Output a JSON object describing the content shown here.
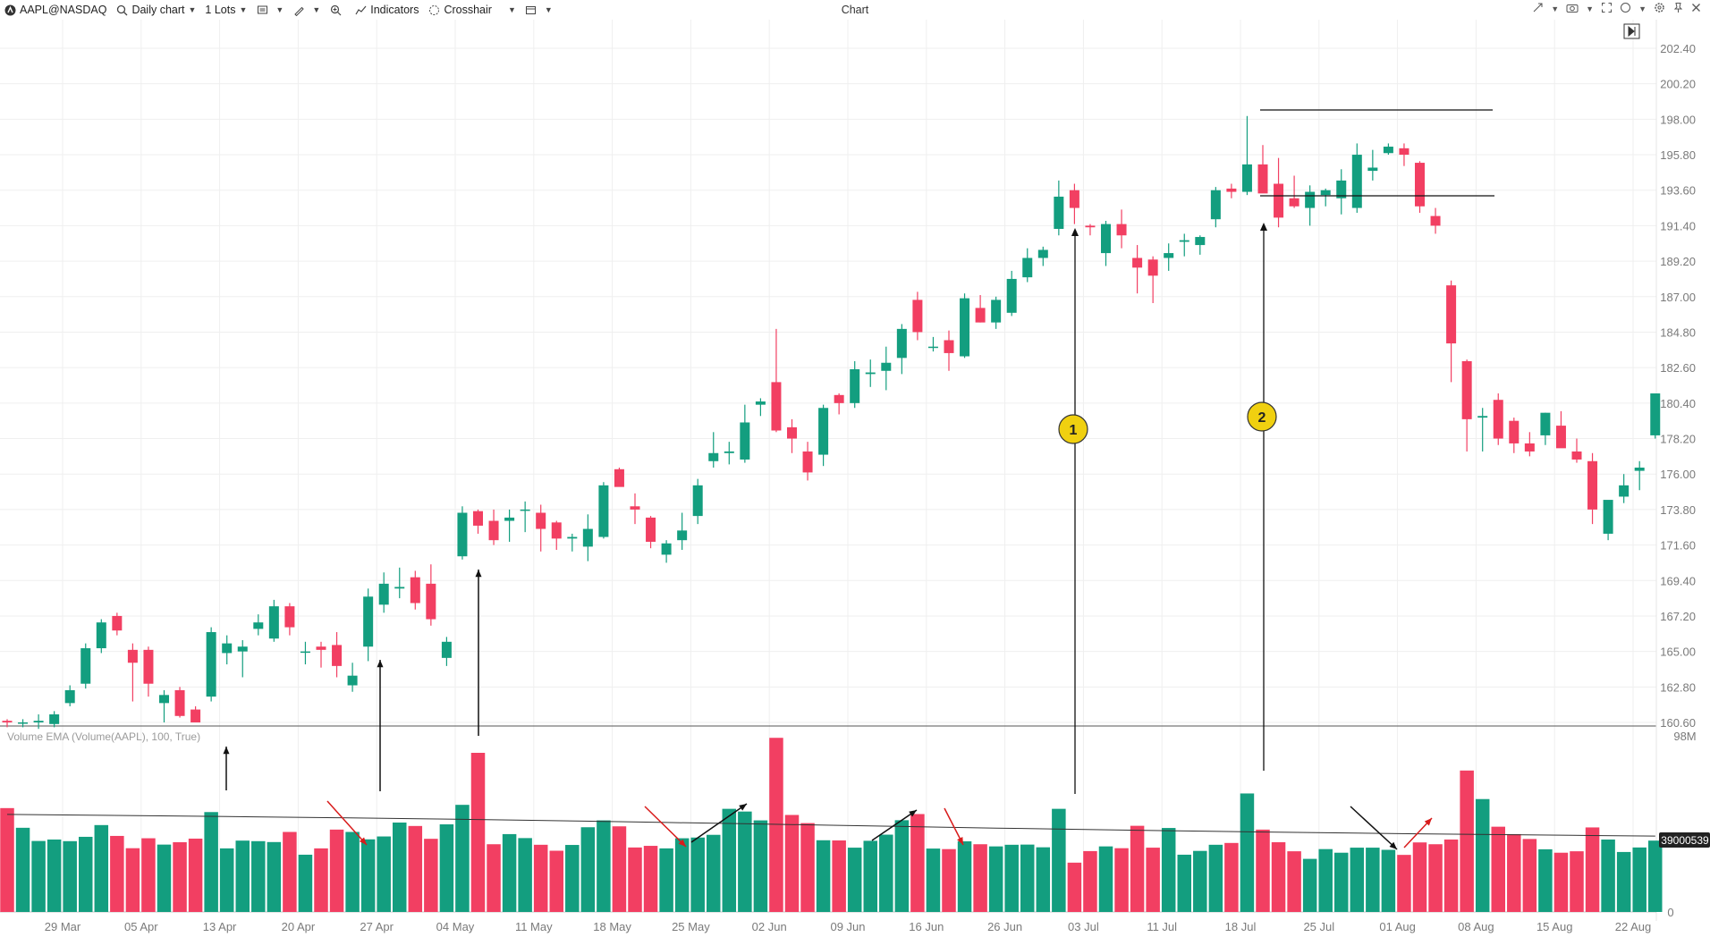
{
  "toolbar": {
    "symbol": "AAPL@NASDAQ",
    "interval": "Daily chart",
    "lots": "1 Lots",
    "indicators": "Indicators",
    "crosshair": "Crosshair",
    "title": "Chart"
  },
  "colors": {
    "up": "#139e7f",
    "down": "#f23f62",
    "ema": "#333333",
    "grid": "#efefef"
  },
  "icons": [
    "logo-icon",
    "search-icon",
    "template-icon",
    "draw-icon",
    "zoom-icon",
    "indicators-icon",
    "crosshair-icon",
    "layout-icon",
    "fit-icon",
    "camera-icon",
    "circle-icon",
    "settings-icon",
    "pin-icon",
    "close-icon",
    "jump-to-end-icon"
  ],
  "chart_data": {
    "type": "candlestick",
    "price_axis": {
      "ticks": [
        "202.40",
        "200.20",
        "198.00",
        "195.80",
        "193.60",
        "191.40",
        "189.20",
        "187.00",
        "184.80",
        "182.60",
        "180.40",
        "178.20",
        "176.00",
        "173.80",
        "171.60",
        "169.40",
        "167.20",
        "165.00",
        "162.80",
        "160.60"
      ],
      "range": [
        160.6,
        202.4
      ]
    },
    "x_labels": [
      "29 Mar",
      "05 Apr",
      "13 Apr",
      "20 Apr",
      "27 Apr",
      "04 May",
      "11 May",
      "18 May",
      "25 May",
      "02 Jun",
      "09 Jun",
      "16 Jun",
      "26 Jun",
      "03 Jul",
      "11 Jul",
      "18 Jul",
      "25 Jul",
      "01 Aug",
      "08 Aug",
      "15 Aug",
      "22 Aug"
    ],
    "candles": [
      [
        160.7,
        160.8,
        160.3,
        160.6
      ],
      [
        160.6,
        160.8,
        160.3,
        160.6
      ],
      [
        160.6,
        161.1,
        160.2,
        160.7
      ],
      [
        160.5,
        161.3,
        160.3,
        161.1
      ],
      [
        161.8,
        162.9,
        161.6,
        162.6
      ],
      [
        163.0,
        165.5,
        162.7,
        165.2
      ],
      [
        165.2,
        167.0,
        164.9,
        166.8
      ],
      [
        167.2,
        167.4,
        166.0,
        166.3
      ],
      [
        165.1,
        165.5,
        161.9,
        164.3
      ],
      [
        165.1,
        165.3,
        162.2,
        163.0
      ],
      [
        161.8,
        162.6,
        160.6,
        162.3
      ],
      [
        162.6,
        162.8,
        160.9,
        161.0
      ],
      [
        161.4,
        161.6,
        160.7,
        160.6
      ],
      [
        162.2,
        166.5,
        161.9,
        166.2
      ],
      [
        164.9,
        166.0,
        164.2,
        165.5
      ],
      [
        165.0,
        165.7,
        163.4,
        165.3
      ],
      [
        166.4,
        167.3,
        166.0,
        166.8
      ],
      [
        165.8,
        168.2,
        165.6,
        167.8
      ],
      [
        167.8,
        168.0,
        166.0,
        166.5
      ],
      [
        165.0,
        165.6,
        164.2,
        165.0
      ],
      [
        165.3,
        165.6,
        164.0,
        165.1
      ],
      [
        165.4,
        166.2,
        163.4,
        164.1
      ],
      [
        162.9,
        164.3,
        162.5,
        163.5
      ],
      [
        165.3,
        168.9,
        164.4,
        168.4
      ],
      [
        167.9,
        169.9,
        167.4,
        169.2
      ],
      [
        168.9,
        170.2,
        168.3,
        169.0
      ],
      [
        169.6,
        170.0,
        167.6,
        168.0
      ],
      [
        169.2,
        170.4,
        166.6,
        167.0
      ],
      [
        164.6,
        165.9,
        164.1,
        165.6
      ],
      [
        170.9,
        174.0,
        170.7,
        173.6
      ],
      [
        173.7,
        173.8,
        172.3,
        172.8
      ],
      [
        173.1,
        173.8,
        171.6,
        171.9
      ],
      [
        173.1,
        173.8,
        171.8,
        173.3
      ],
      [
        173.8,
        174.3,
        172.4,
        173.8
      ],
      [
        173.6,
        174.1,
        171.2,
        172.6
      ],
      [
        173.0,
        173.1,
        171.3,
        172.0
      ],
      [
        172.0,
        172.3,
        171.2,
        172.1
      ],
      [
        171.5,
        173.5,
        170.6,
        172.6
      ],
      [
        172.1,
        175.5,
        172.0,
        175.3
      ],
      [
        176.3,
        176.4,
        175.3,
        175.2
      ],
      [
        174.0,
        174.8,
        172.9,
        173.8
      ],
      [
        173.3,
        173.4,
        171.4,
        171.8
      ],
      [
        171.0,
        171.9,
        170.5,
        171.7
      ],
      [
        171.9,
        173.6,
        171.3,
        172.5
      ],
      [
        173.4,
        175.7,
        172.9,
        175.3
      ],
      [
        176.8,
        178.6,
        176.4,
        177.3
      ],
      [
        177.3,
        178.0,
        176.6,
        177.4
      ],
      [
        176.9,
        180.3,
        176.7,
        179.2
      ],
      [
        180.3,
        180.7,
        179.6,
        180.5
      ],
      [
        181.7,
        185.0,
        178.6,
        178.7
      ],
      [
        178.9,
        179.4,
        177.3,
        178.2
      ],
      [
        177.4,
        178.0,
        175.6,
        176.1
      ],
      [
        177.2,
        180.3,
        176.5,
        180.1
      ],
      [
        180.9,
        181.0,
        179.7,
        180.4
      ],
      [
        180.4,
        183.0,
        180.1,
        182.5
      ],
      [
        182.2,
        183.1,
        181.4,
        182.3
      ],
      [
        182.4,
        183.9,
        181.2,
        182.9
      ],
      [
        183.2,
        185.3,
        182.2,
        185.0
      ],
      [
        186.8,
        187.3,
        184.3,
        184.8
      ],
      [
        183.9,
        184.5,
        183.6,
        183.9
      ],
      [
        184.3,
        184.9,
        182.4,
        183.5
      ],
      [
        183.3,
        187.2,
        183.2,
        186.9
      ],
      [
        186.3,
        187.1,
        185.4,
        185.4
      ],
      [
        185.4,
        187.0,
        185.0,
        186.8
      ],
      [
        186.0,
        188.6,
        185.8,
        188.1
      ],
      [
        188.2,
        190.0,
        187.9,
        189.4
      ],
      [
        189.4,
        190.1,
        188.9,
        189.9
      ],
      [
        191.2,
        194.2,
        190.8,
        193.2
      ],
      [
        193.6,
        194.0,
        191.5,
        192.5
      ],
      [
        191.4,
        191.5,
        190.8,
        191.3
      ],
      [
        189.7,
        191.7,
        188.9,
        191.5
      ],
      [
        191.5,
        192.4,
        190.0,
        190.8
      ],
      [
        189.4,
        190.2,
        187.2,
        188.8
      ],
      [
        189.3,
        189.5,
        186.6,
        188.3
      ],
      [
        189.4,
        190.3,
        188.6,
        189.7
      ],
      [
        190.4,
        190.9,
        189.5,
        190.5
      ],
      [
        190.2,
        190.8,
        189.6,
        190.7
      ],
      [
        191.8,
        193.8,
        191.3,
        193.6
      ],
      [
        193.7,
        194.0,
        193.1,
        193.5
      ],
      [
        193.5,
        198.2,
        193.3,
        195.2
      ],
      [
        195.2,
        196.4,
        193.6,
        193.4
      ],
      [
        194.0,
        195.6,
        191.3,
        191.9
      ],
      [
        193.1,
        194.5,
        192.5,
        192.6
      ],
      [
        192.5,
        193.9,
        191.4,
        193.5
      ],
      [
        193.3,
        193.7,
        192.6,
        193.6
      ],
      [
        193.1,
        194.9,
        192.1,
        194.2
      ],
      [
        192.5,
        196.5,
        192.2,
        195.8
      ],
      [
        194.8,
        196.1,
        194.2,
        195.0
      ],
      [
        195.9,
        196.5,
        195.8,
        196.3
      ],
      [
        196.2,
        196.5,
        195.1,
        195.8
      ],
      [
        195.3,
        195.4,
        192.2,
        192.6
      ],
      [
        192.0,
        192.5,
        190.9,
        191.4
      ],
      [
        187.7,
        188.0,
        181.7,
        184.1
      ],
      [
        183.0,
        183.1,
        177.4,
        179.4
      ],
      [
        179.5,
        180.1,
        177.4,
        179.6
      ],
      [
        180.6,
        181.0,
        177.8,
        178.2
      ],
      [
        179.3,
        179.5,
        177.3,
        177.9
      ],
      [
        177.9,
        178.6,
        177.1,
        177.4
      ],
      [
        178.4,
        179.8,
        177.8,
        179.8
      ],
      [
        179.0,
        179.9,
        177.8,
        177.6
      ],
      [
        177.4,
        178.2,
        176.7,
        176.9
      ],
      [
        176.8,
        177.3,
        172.9,
        173.8
      ],
      [
        172.3,
        174.3,
        171.9,
        174.4
      ],
      [
        174.6,
        176.0,
        174.2,
        175.3
      ],
      [
        176.2,
        176.8,
        175.0,
        176.4
      ],
      [
        178.4,
        180.9,
        178.2,
        181.0
      ]
    ],
    "volume_panel": {
      "label": "Volume EMA (Volume(AAPL), 100, True)",
      "max_label": "98M",
      "zero_label": "0",
      "current_value": "39000539",
      "max": 98000000,
      "volumes_m": [
        57.5,
        46.6,
        39.3,
        40.1,
        39.2,
        41.6,
        48.1,
        42.1,
        35.3,
        40.8,
        37.3,
        38.6,
        40.6,
        55.3,
        35.2,
        39.5,
        39.2,
        38.7,
        44.3,
        31.7,
        35.2,
        45.6,
        44.3,
        40.2,
        41.8,
        49.5,
        47.6,
        40.5,
        48.5,
        59.3,
        88.1,
        37.5,
        43.1,
        40.9,
        37.2,
        33.9,
        37.1,
        46.9,
        50.7,
        47.4,
        35.7,
        36.6,
        35.2,
        40.8,
        41.2,
        42.7,
        57.1,
        55.6,
        50.7,
        96.4,
        53.7,
        49.2,
        39.7,
        39.6,
        35.6,
        39.4,
        42.8,
        50.8,
        54.2,
        35.1,
        34.8,
        39.1,
        37.5,
        36.3,
        37.2,
        37.3,
        35.8,
        57.1,
        27.3,
        33.7,
        36.3,
        35.3,
        47.7,
        35.6,
        46.5,
        31.7,
        33.8,
        37.2,
        38.2,
        65.6,
        45.6,
        38.6,
        33.6,
        29.4,
        34.8,
        32.8,
        35.6,
        35.6,
        34.4,
        31.6,
        38.5,
        37.5,
        40.1,
        78.3,
        62.5,
        47.2,
        43.1,
        40.4,
        34.7,
        32.8,
        33.6,
        46.8,
        40.1,
        33.2,
        35.7,
        39.5
      ],
      "ema_m": [
        54.0,
        42.0
      ]
    },
    "annotations": {
      "marker_1": "1",
      "marker_2": "2"
    }
  }
}
